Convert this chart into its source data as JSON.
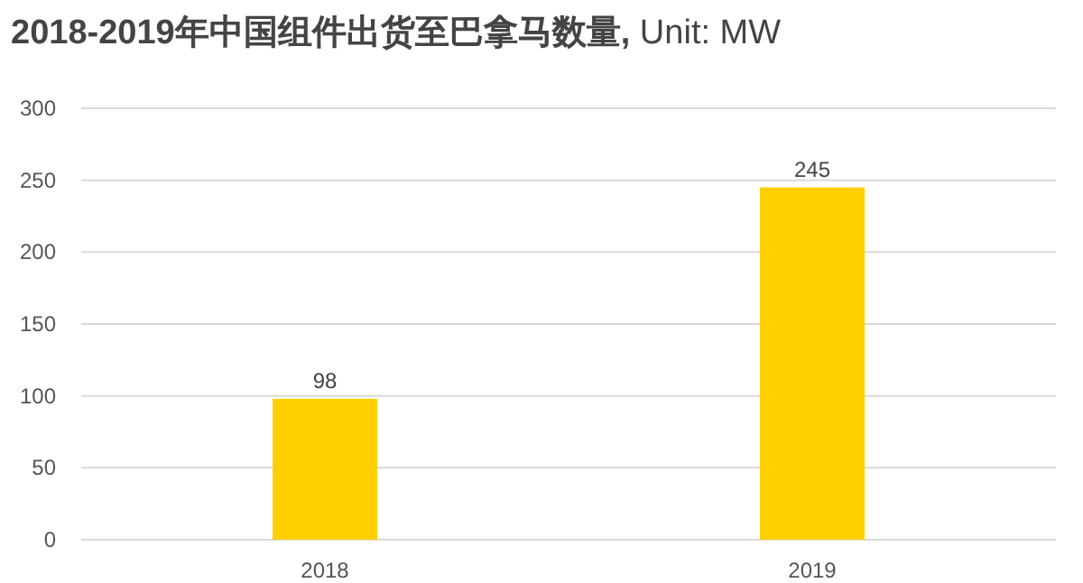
{
  "chart_data": {
    "type": "bar",
    "title": "**2018-2019年中国组件出货至巴拿马数量,** Unit: MW",
    "categories": [
      "2018",
      "2019"
    ],
    "values": [
      98,
      245
    ],
    "color": "#ffcf00",
    "ylim": [
      0,
      300
    ],
    "yticks": [
      0,
      50,
      100,
      150,
      200,
      250,
      300
    ],
    "grid": "y",
    "data_labels": true
  }
}
